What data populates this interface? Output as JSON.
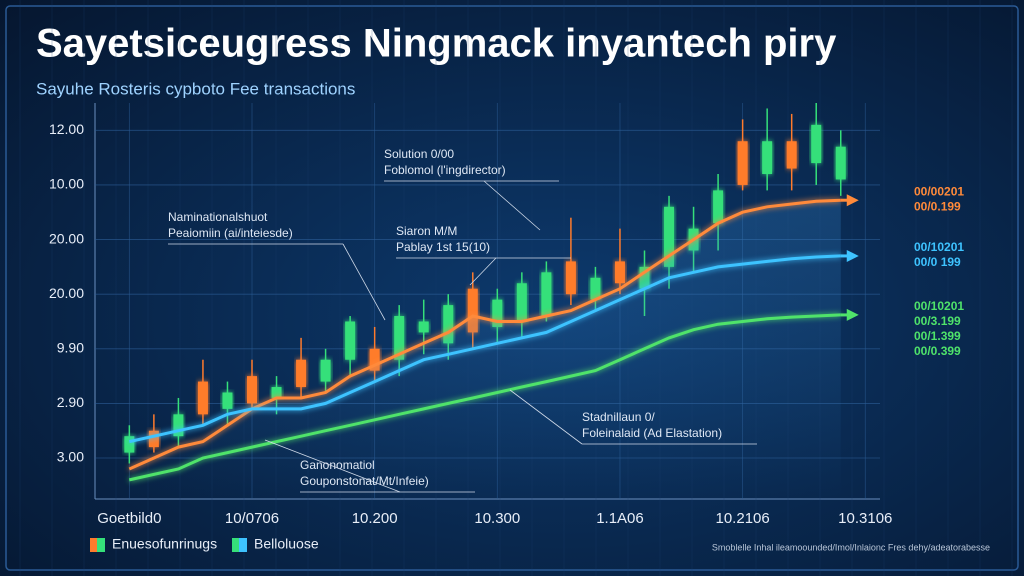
{
  "chart_data": {
    "type": "candlestick",
    "title": "Sayetsiceugress Ningmack inyantech piry",
    "subtitle": "Sayuhe Rosteris cypboto Fee transactions",
    "x": [
      0,
      1,
      2,
      3,
      4,
      5,
      6,
      7,
      8,
      9,
      10,
      11,
      12,
      13,
      14,
      15,
      16,
      17,
      18,
      19,
      20,
      21,
      22,
      23,
      24,
      25,
      26,
      27,
      28,
      29
    ],
    "open": [
      0.1,
      0.5,
      0.4,
      1.4,
      0.9,
      1.5,
      1.1,
      1.8,
      1.4,
      1.8,
      2.0,
      1.8,
      2.3,
      2.1,
      3.1,
      2.4,
      2.5,
      2.6,
      3.6,
      2.9,
      3.6,
      3.1,
      3.5,
      3.8,
      4.3,
      5.8,
      5.2,
      5.8,
      5.4,
      5.1
    ],
    "high": [
      0.6,
      0.8,
      1.1,
      1.8,
      1.4,
      1.8,
      1.5,
      2.2,
      2.0,
      2.6,
      2.4,
      2.8,
      2.9,
      3.0,
      3.4,
      3.1,
      3.4,
      3.6,
      4.4,
      3.5,
      4.2,
      3.8,
      4.8,
      4.6,
      5.2,
      6.2,
      6.4,
      6.3,
      6.5,
      6.0
    ],
    "low": [
      -0.1,
      0.1,
      0.2,
      0.6,
      0.6,
      0.9,
      0.8,
      1.1,
      1.2,
      1.5,
      1.4,
      1.5,
      1.9,
      1.8,
      2.0,
      2.1,
      2.2,
      2.5,
      2.8,
      2.7,
      3.0,
      2.6,
      3.1,
      3.4,
      3.8,
      4.9,
      4.9,
      4.9,
      5.0,
      4.8
    ],
    "close": [
      0.4,
      0.2,
      0.8,
      0.8,
      1.2,
      1.0,
      1.3,
      1.3,
      1.8,
      2.5,
      1.6,
      2.6,
      2.5,
      2.8,
      2.3,
      2.9,
      3.2,
      3.4,
      3.0,
      3.3,
      3.2,
      3.5,
      4.6,
      4.2,
      4.9,
      5.0,
      5.8,
      5.3,
      6.1,
      5.7
    ],
    "up_color": "#35e07a",
    "down_color": "#ff7b2c",
    "series": [
      {
        "color": "#ff8a3a",
        "end_labels": [
          "00/00201",
          "00/0.199"
        ],
        "values": [
          -0.2,
          0,
          0.2,
          0.3,
          0.6,
          0.9,
          1.1,
          1.1,
          1.2,
          1.5,
          1.7,
          1.9,
          2.1,
          2.3,
          2.6,
          2.5,
          2.5,
          2.6,
          2.7,
          2.9,
          3.1,
          3.4,
          3.7,
          4.0,
          4.3,
          4.5,
          4.6,
          4.65,
          4.7,
          4.72
        ]
      },
      {
        "color": "#3ec3ff",
        "end_labels": [
          "00/10201",
          "00/0 199"
        ],
        "values": [
          0.3,
          0.4,
          0.5,
          0.6,
          0.8,
          0.9,
          0.9,
          0.9,
          1.0,
          1.2,
          1.4,
          1.6,
          1.8,
          1.9,
          2.0,
          2.1,
          2.2,
          2.3,
          2.5,
          2.7,
          2.9,
          3.1,
          3.3,
          3.4,
          3.5,
          3.55,
          3.6,
          3.65,
          3.68,
          3.7
        ]
      },
      {
        "color": "#4fe36a",
        "end_labels": [
          "00/10201",
          "00/3.199",
          "00/1.399",
          "00/0.399"
        ],
        "values": [
          -0.4,
          -0.3,
          -0.2,
          0,
          0.1,
          0.2,
          0.3,
          0.4,
          0.5,
          0.6,
          0.7,
          0.8,
          0.9,
          1.0,
          1.1,
          1.2,
          1.3,
          1.4,
          1.5,
          1.6,
          1.8,
          2.0,
          2.2,
          2.35,
          2.45,
          2.5,
          2.55,
          2.58,
          2.6,
          2.62
        ]
      }
    ],
    "xlim": [
      -1.4,
      30.6
    ],
    "xticks": [
      {
        "value": 0,
        "label": "Goetbild0"
      },
      {
        "value": 5,
        "label": "10/0706"
      },
      {
        "value": 10,
        "label": "10.200"
      },
      {
        "value": 15,
        "label": "10.300"
      },
      {
        "value": 20,
        "label": "1.1A06"
      },
      {
        "value": 25,
        "label": "10.2106"
      },
      {
        "value": 30,
        "label": "10.3106"
      }
    ],
    "ylim": [
      -0.75,
      6.5
    ],
    "yticks": [
      {
        "value": 0,
        "label": "3.00"
      },
      {
        "value": 1,
        "label": "2.90"
      },
      {
        "value": 2,
        "label": "9.90"
      },
      {
        "value": 3,
        "label": "20.00"
      },
      {
        "value": 4,
        "label": "20.00"
      },
      {
        "value": 5,
        "label": "10.00"
      },
      {
        "value": 6,
        "label": "12.00"
      }
    ],
    "grid": true,
    "annotations": [
      [
        "Solution 0/00",
        "Foblomol (l'ingdirector)"
      ],
      [
        "Naminationalshuot",
        "Peaiomiin (ai/inteiesde)"
      ],
      [
        "Siaron M/M",
        "Pablay 1st 15(10)"
      ],
      [
        "Stadnillaun 0/",
        "Foleinalaid (Ad Elastation)"
      ],
      [
        "Ganonomatiol",
        "Gouponstonat/Mt/Infeie)"
      ]
    ],
    "legend": [
      "Enuesofunrinugs",
      "Belloluose"
    ],
    "footer": "Smoblelle Inhal ileamoounded/Imol/Inlaionc Fres dehy/adeatorabesse"
  }
}
